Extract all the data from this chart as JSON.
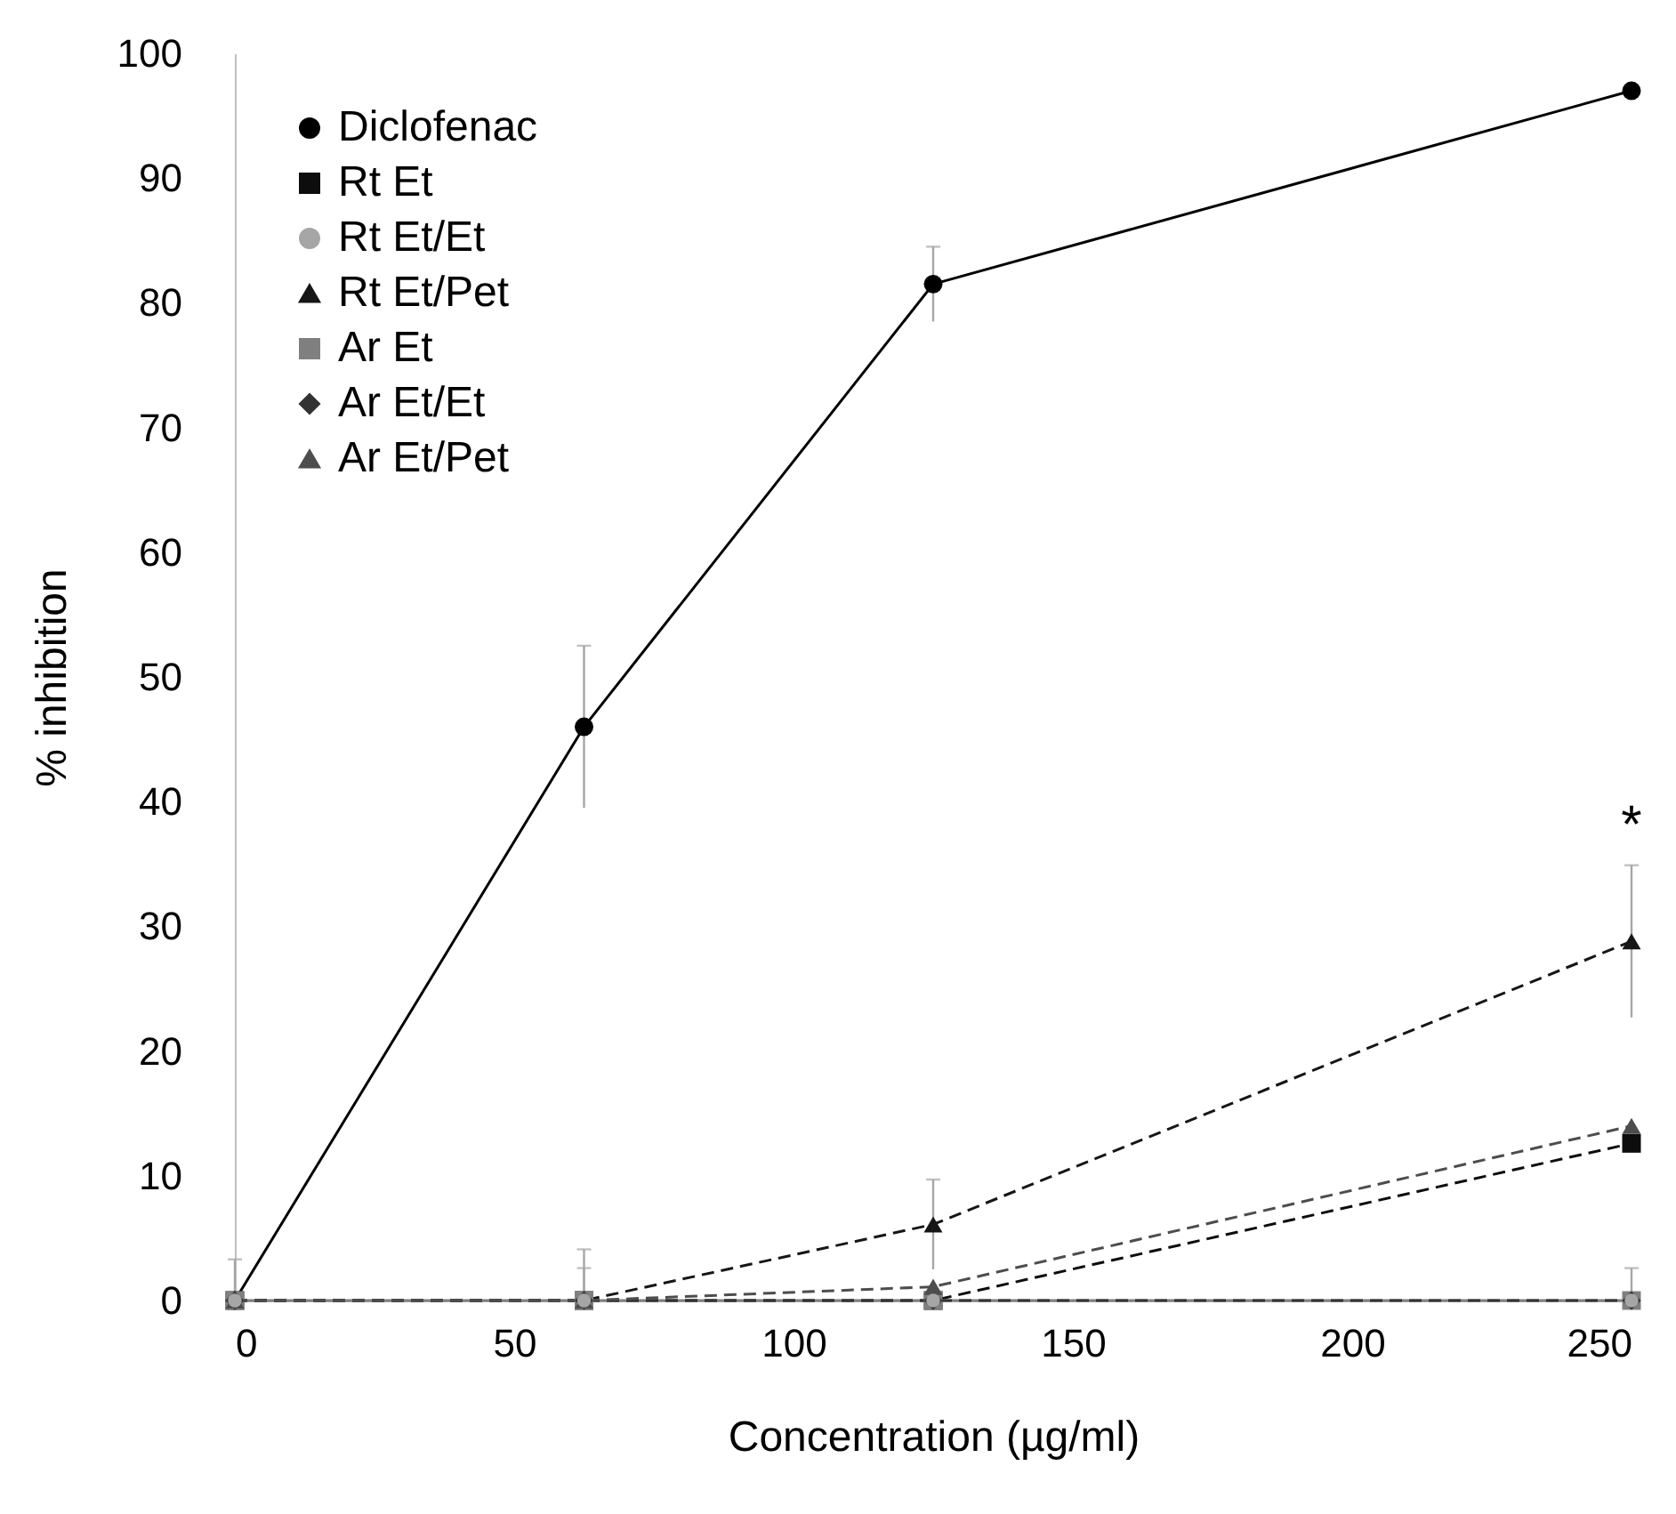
{
  "chart_data": {
    "type": "line",
    "xlabel": "Concentration (µg/ml)",
    "ylabel": "% inhibition",
    "x": [
      0,
      62.5,
      125,
      250
    ],
    "xlim": [
      0,
      250
    ],
    "xticks": [
      0,
      50,
      100,
      150,
      200,
      250
    ],
    "ylim": [
      0,
      100
    ],
    "yticks": [
      0,
      10,
      20,
      30,
      40,
      50,
      60,
      70,
      80,
      90,
      100
    ],
    "grid": false,
    "legend": "top left",
    "annotations": [
      {
        "text": "*",
        "x": 250,
        "y": 34.9
      }
    ],
    "series": [
      {
        "name": "Diclofenac",
        "color": "#000000",
        "marker": "circle",
        "line_style": "solid",
        "values": [
          0,
          46,
          81.5,
          97
        ],
        "errors": [
          [
            0,
            3.3
          ],
          6.5,
          3,
          null
        ]
      },
      {
        "name": "Rt Et",
        "color": "#0d0d0d",
        "marker": "square",
        "line_style": "dashed",
        "values": [
          0,
          0,
          0,
          12.6
        ]
      },
      {
        "name": "Rt Et/Et",
        "type": "scatter",
        "color": "#a6a6a6",
        "marker": "circle",
        "values": [
          0,
          0,
          0,
          0
        ]
      },
      {
        "name": "Rt Et/Pet",
        "color": "#161616",
        "marker": "triangle",
        "line_style": "dashed",
        "values": [
          0,
          0,
          6.1,
          28.8
        ],
        "errors": [
          null,
          [
            0,
            4.1
          ],
          3.6,
          6.1
        ]
      },
      {
        "name": "Ar Et",
        "color": "#7f7f7f",
        "marker": "square",
        "line_style": "solid",
        "values": [
          0,
          0,
          0,
          0
        ]
      },
      {
        "name": "Ar Et/Et",
        "color": "#333333",
        "marker": "diamond",
        "line_style": "dashed",
        "values": [
          0,
          0,
          0,
          0
        ],
        "errors": [
          null,
          null,
          null,
          [
            0,
            2.6
          ]
        ]
      },
      {
        "name": "Ar Et/Pet",
        "color": "#4d4d4d",
        "marker": "triangle",
        "line_style": "dashed",
        "values": [
          0,
          0,
          1.1,
          14.0
        ],
        "errors": [
          null,
          [
            0,
            2.6
          ],
          null,
          null
        ]
      }
    ]
  }
}
